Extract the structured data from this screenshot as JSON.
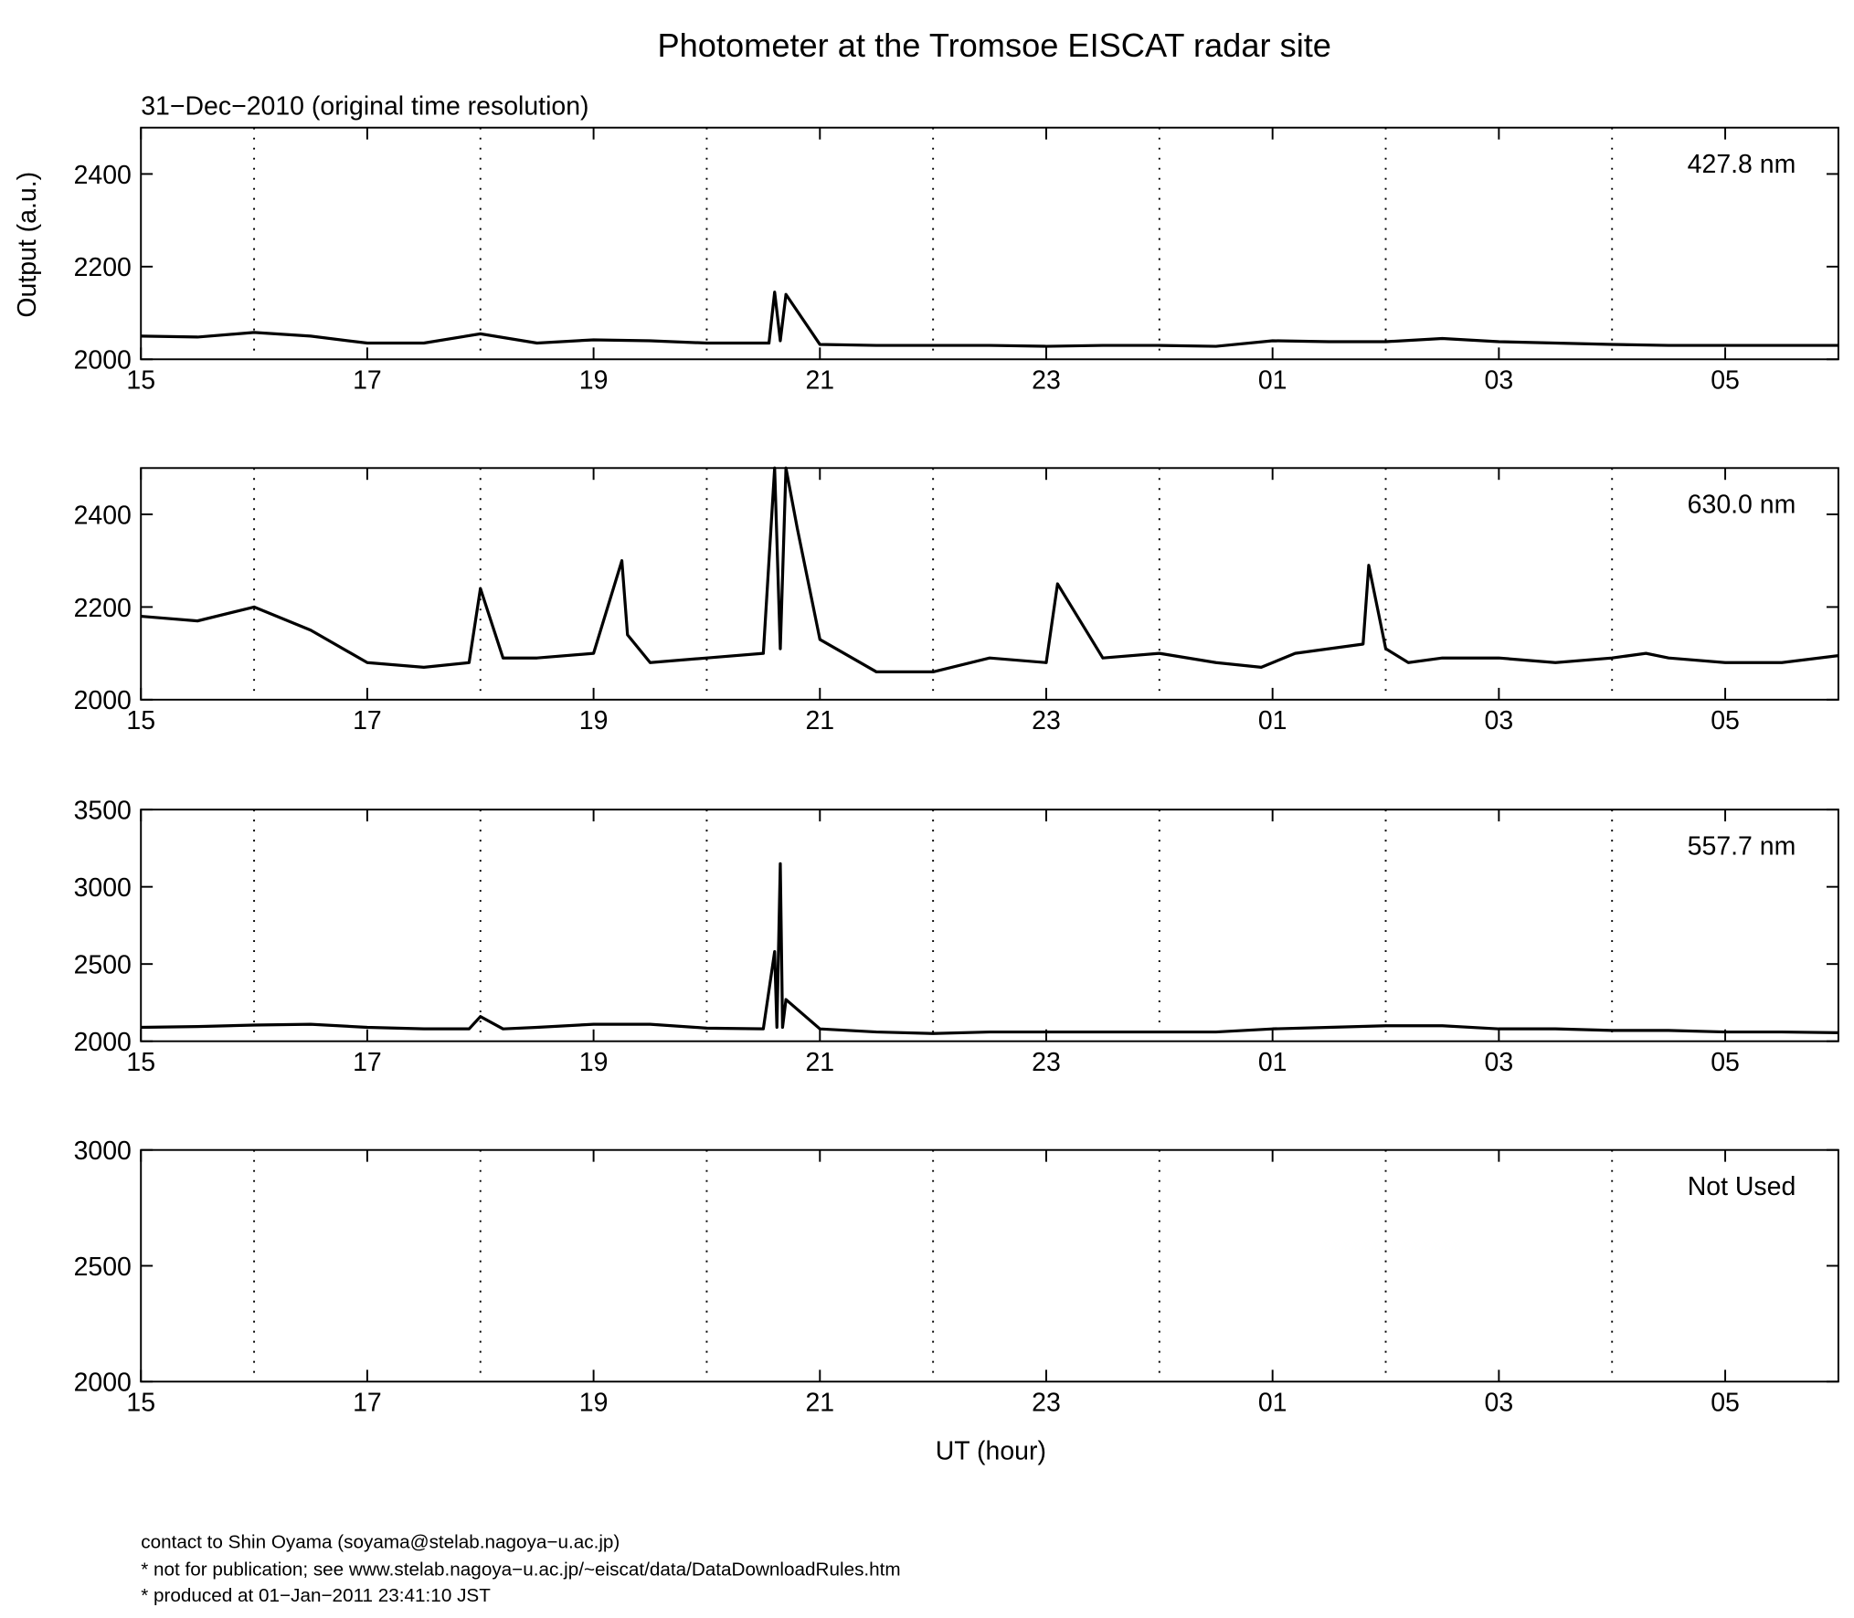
{
  "title": "Photometer at the Tromsoe EISCAT radar site",
  "subtitle": "31−Dec−2010 (original time resolution)",
  "y_label": "Output (a.u.)",
  "x_label": "UT (hour)",
  "footer": [
    "contact to Shin Oyama (soyama@stelab.nagoya−u.ac.jp)",
    "* not for publication; see www.stelab.nagoya−u.ac.jp/~eiscat/data/DataDownloadRules.htm",
    "* produced at 01−Jan−2011 23:41:10 JST"
  ],
  "chart_data": [
    {
      "type": "line",
      "annotation": "427.8 nm",
      "xlim": [
        15,
        30
      ],
      "ylim": [
        2000,
        2500
      ],
      "xticks": [
        15,
        17,
        19,
        21,
        23,
        {
          "value": 25,
          "label": "01"
        },
        {
          "value": 27,
          "label": "03"
        },
        {
          "value": 29,
          "label": "05"
        }
      ],
      "xminor": [
        16,
        18,
        20,
        22,
        24,
        26,
        28
      ],
      "yticks": [
        2000,
        2200,
        2400
      ],
      "x": [
        15,
        15.5,
        16,
        16.5,
        17,
        17.5,
        18,
        18.5,
        19,
        19.5,
        20,
        20.55,
        20.6,
        20.65,
        20.7,
        21,
        21.5,
        22,
        22.5,
        23,
        23.5,
        24,
        24.5,
        25,
        25.5,
        26,
        26.5,
        27,
        27.5,
        28,
        28.5,
        29,
        29.5,
        30
      ],
      "series": [
        {
          "color": "#000000",
          "values": [
            2050,
            2048,
            2058,
            2050,
            2035,
            2035,
            2055,
            2035,
            2042,
            2040,
            2035,
            2035,
            2145,
            2040,
            2140,
            2032,
            2030,
            2030,
            2030,
            2028,
            2030,
            2030,
            2028,
            2040,
            2038,
            2038,
            2045,
            2038,
            2035,
            2032,
            2030,
            2030,
            2030,
            2030
          ]
        }
      ]
    },
    {
      "type": "line",
      "annotation": "630.0 nm",
      "xlim": [
        15,
        30
      ],
      "ylim": [
        2000,
        2500
      ],
      "xticks": [
        15,
        17,
        19,
        21,
        23,
        {
          "value": 25,
          "label": "01"
        },
        {
          "value": 27,
          "label": "03"
        },
        {
          "value": 29,
          "label": "05"
        }
      ],
      "xminor": [
        16,
        18,
        20,
        22,
        24,
        26,
        28
      ],
      "yticks": [
        2000,
        2200,
        2400
      ],
      "x": [
        15,
        15.5,
        16,
        16.5,
        17,
        17.5,
        17.9,
        18,
        18.2,
        18.5,
        19,
        19.25,
        19.3,
        19.5,
        20,
        20.5,
        20.6,
        20.65,
        20.7,
        20.8,
        21,
        21.5,
        22,
        22.5,
        23,
        23.1,
        23.5,
        24,
        24.5,
        24.9,
        25.2,
        25.8,
        25.85,
        26,
        26.2,
        26.5,
        27,
        27.5,
        28,
        28.3,
        28.5,
        29,
        29.5,
        30
      ],
      "series": [
        {
          "color": "#000000",
          "values": [
            2180,
            2170,
            2200,
            2150,
            2080,
            2070,
            2080,
            2240,
            2090,
            2090,
            2100,
            2300,
            2140,
            2080,
            2090,
            2100,
            2500,
            2110,
            2500,
            2370,
            2130,
            2060,
            2060,
            2090,
            2080,
            2250,
            2090,
            2100,
            2080,
            2070,
            2100,
            2120,
            2290,
            2110,
            2080,
            2090,
            2090,
            2080,
            2090,
            2100,
            2090,
            2080,
            2080,
            2095
          ]
        }
      ]
    },
    {
      "type": "line",
      "annotation": "557.7 nm",
      "xlim": [
        15,
        30
      ],
      "ylim": [
        2000,
        3500
      ],
      "xticks": [
        15,
        17,
        19,
        21,
        23,
        {
          "value": 25,
          "label": "01"
        },
        {
          "value": 27,
          "label": "03"
        },
        {
          "value": 29,
          "label": "05"
        }
      ],
      "xminor": [
        16,
        18,
        20,
        22,
        24,
        26,
        28
      ],
      "yticks": [
        2000,
        2500,
        3000,
        3500
      ],
      "x": [
        15,
        15.5,
        16,
        16.5,
        17,
        17.5,
        17.9,
        18,
        18.2,
        18.5,
        19,
        19.5,
        20,
        20.5,
        20.6,
        20.62,
        20.65,
        20.67,
        20.7,
        21,
        21.5,
        22,
        22.5,
        23,
        23.5,
        24,
        24.5,
        25,
        25.5,
        26,
        26.5,
        27,
        27.5,
        28,
        28.5,
        29,
        29.5,
        30
      ],
      "series": [
        {
          "color": "#000000",
          "values": [
            2090,
            2095,
            2105,
            2110,
            2090,
            2080,
            2080,
            2160,
            2080,
            2090,
            2110,
            2110,
            2085,
            2080,
            2580,
            2090,
            3150,
            2090,
            2270,
            2080,
            2060,
            2050,
            2060,
            2060,
            2060,
            2060,
            2060,
            2080,
            2090,
            2100,
            2100,
            2080,
            2080,
            2070,
            2070,
            2060,
            2060,
            2055
          ]
        }
      ]
    },
    {
      "type": "line",
      "annotation": "Not Used",
      "xlim": [
        15,
        30
      ],
      "ylim": [
        2000,
        3000
      ],
      "xticks": [
        15,
        17,
        19,
        21,
        23,
        {
          "value": 25,
          "label": "01"
        },
        {
          "value": 27,
          "label": "03"
        },
        {
          "value": 29,
          "label": "05"
        }
      ],
      "xminor": [
        16,
        18,
        20,
        22,
        24,
        26,
        28
      ],
      "yticks": [
        2000,
        2500,
        3000
      ],
      "x": [],
      "series": []
    }
  ]
}
